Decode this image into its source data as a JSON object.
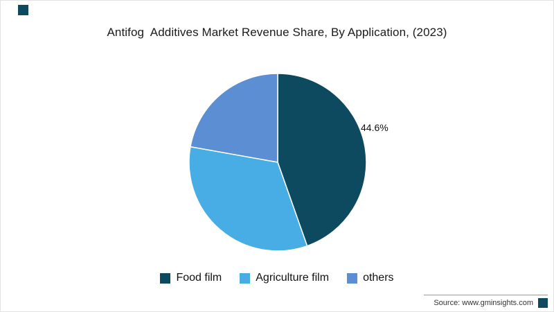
{
  "page": {
    "background": "#ffffff",
    "accent_color": "#0d4a5f"
  },
  "source": {
    "text": "Source: www.gminsights.com"
  },
  "chart_data": {
    "type": "pie",
    "title": "Antifog  Additives Market Revenue Share, By Application, (2023)",
    "slices": [
      {
        "label": "Food film",
        "value": 44.6,
        "color": "#0d4a5f",
        "data_label": "44.6%"
      },
      {
        "label": "Agriculture film",
        "value": 33.2,
        "color": "#47ade4",
        "data_label": ""
      },
      {
        "label": "others",
        "value": 22.2,
        "color": "#5b8ed2",
        "data_label": ""
      }
    ],
    "start_angle_deg": 0,
    "direction": "clockwise",
    "legend_position": "bottom",
    "legend": [
      "Food film",
      "Agriculture film",
      "others"
    ],
    "grid": false
  }
}
